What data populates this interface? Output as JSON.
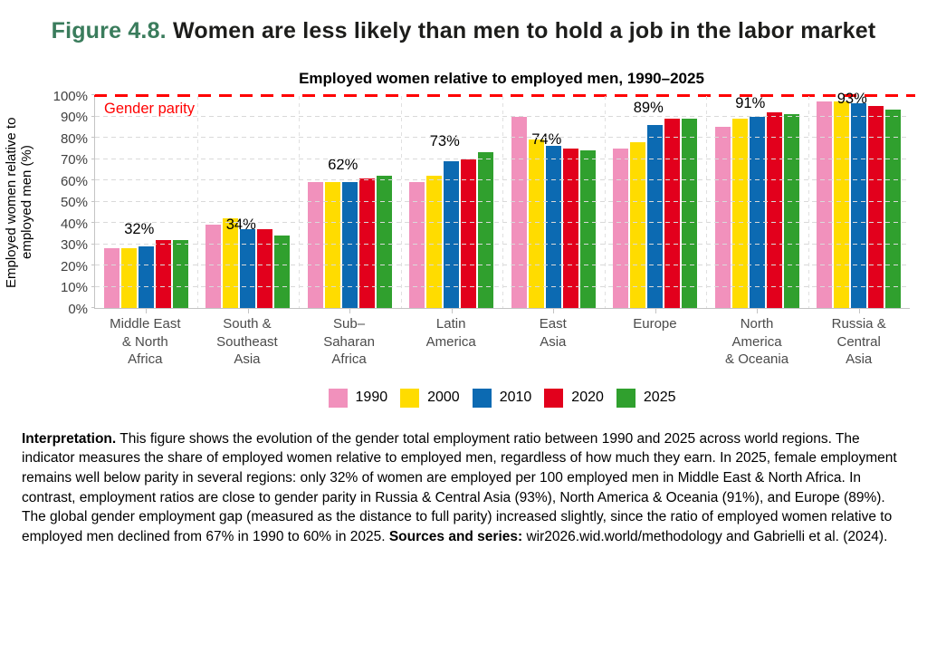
{
  "figure": {
    "number": "Figure 4.8.",
    "title_rest": " Women are less likely than men to hold a job in the labor market"
  },
  "chart_data": {
    "type": "bar",
    "title": "Employed women relative to employed men, 1990–2025",
    "ylabel": "Employed women relative to\nemployed men (%)",
    "ylim": [
      0,
      100
    ],
    "ytick_step": 10,
    "ytick_suffix": "%",
    "grid": "horizontal dashed gridlines every 10%, faint vertical dashed separators between groups",
    "legend_position": "bottom-center",
    "parity_line": {
      "value": 100,
      "label": "Gender parity",
      "color": "#ff0000",
      "style": "dashed"
    },
    "categories": [
      "Middle East\n& North\nAfrica",
      "South &\nSoutheast\nAsia",
      "Sub–\nSaharan\nAfrica",
      "Latin\nAmerica",
      "East\nAsia",
      "Europe",
      "North\nAmerica\n& Oceania",
      "Russia &\nCentral\nAsia"
    ],
    "series": [
      {
        "name": "1990",
        "color": "#f191bc",
        "values": [
          28,
          39,
          59,
          59,
          90,
          75,
          85,
          97
        ]
      },
      {
        "name": "2000",
        "color": "#ffdc00",
        "values": [
          28,
          42,
          59,
          62,
          79,
          78,
          89,
          97
        ]
      },
      {
        "name": "2010",
        "color": "#0c6ab2",
        "values": [
          29,
          37,
          59,
          69,
          76,
          86,
          90,
          96
        ]
      },
      {
        "name": "2020",
        "color": "#e2001c",
        "values": [
          32,
          37,
          61,
          70,
          75,
          89,
          92,
          95
        ]
      },
      {
        "name": "2025",
        "color": "#30a02e",
        "values": [
          32,
          34,
          62,
          73,
          74,
          89,
          91,
          93
        ]
      }
    ],
    "data_labels_2025": [
      "32%",
      "34%",
      "62%",
      "73%",
      "74%",
      "89%",
      "91%",
      "93%"
    ]
  },
  "interpretation": {
    "lead": "Interpretation.",
    "body": " This figure shows the evolution of the gender total employment ratio between 1990 and 2025 across world regions. The indicator measures the share of employed women relative to employed men, regardless of how much they earn. In 2025, female employment remains well below parity in several regions: only 32% of women are employed per 100 employed men in Middle East & North Africa. In contrast, employment ratios are close to gender parity in Russia & Central Asia (93%), North America & Oceania (91%), and Europe (89%). The global gender employment gap (measured as the distance to full parity) increased slightly, since the ratio of employed women relative to employed men declined from 67% in 1990 to 60% in 2025. ",
    "sources_label": "Sources and series:",
    "sources_text": " wir2026.wid.world/methodology and Gabrielli et al. (2024)."
  }
}
